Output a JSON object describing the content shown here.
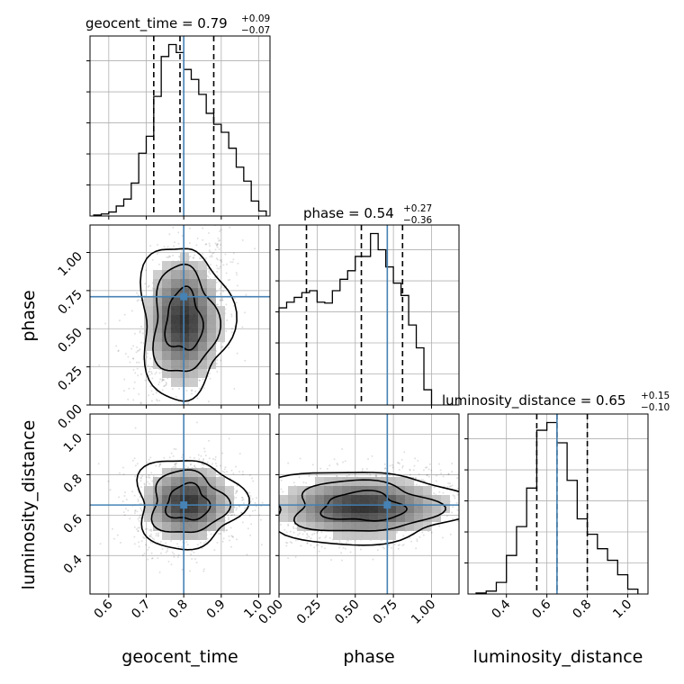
{
  "chart_data": {
    "type": "corner",
    "parameters": [
      "geocent_time",
      "phase",
      "luminosity_distance"
    ],
    "injection": {
      "geocent_time": 0.8,
      "phase": 0.71,
      "luminosity_distance": 0.65
    },
    "ranges": {
      "geocent_time": [
        0.55,
        1.03
      ],
      "phase": [
        0.0,
        1.18
      ],
      "luminosity_distance": [
        0.21,
        1.1
      ]
    },
    "ticks": {
      "geocent_time": [
        0.6,
        0.7,
        0.8,
        0.9,
        1.0
      ],
      "phase": [
        0.0,
        0.25,
        0.5,
        0.75,
        1.0
      ],
      "luminosity_distance": [
        0.4,
        0.6,
        0.8,
        1.0
      ]
    },
    "tick_labels": {
      "geocent_time": [
        "0.6",
        "0.7",
        "0.8",
        "0.9",
        "1.0"
      ],
      "phase_x": [
        "0.00",
        "0.25",
        "0.50",
        "0.75",
        "1.00"
      ],
      "phase_y": [
        "0.00",
        "0.25",
        "0.50",
        "0.75",
        "1.00"
      ],
      "luminosity_distance": [
        "0.4",
        "0.6",
        "0.8",
        "1.0"
      ]
    },
    "titles": {
      "geocent_time": {
        "main": "geocent_time = 0.79",
        "sup": "+0.09",
        "sub": "−0.07"
      },
      "phase": {
        "main": "phase = 0.54",
        "sup": "+0.27",
        "sub": "−0.36"
      },
      "luminosity_distance": {
        "main": "luminosity_distance = 0.65",
        "sup": "+0.15",
        "sub": "−0.10"
      }
    },
    "quantiles": {
      "geocent_time": [
        0.72,
        0.79,
        0.88
      ],
      "phase": [
        0.18,
        0.54,
        0.81
      ],
      "luminosity_distance": [
        0.55,
        0.65,
        0.8
      ]
    },
    "histograms": {
      "geocent_time": {
        "edges": [
          0.56,
          0.58,
          0.6,
          0.62,
          0.64,
          0.66,
          0.68,
          0.7,
          0.72,
          0.74,
          0.76,
          0.78,
          0.8,
          0.82,
          0.84,
          0.86,
          0.88,
          0.9,
          0.92,
          0.94,
          0.96,
          0.98,
          1.0,
          1.02
        ],
        "counts": [
          1,
          2,
          4,
          10,
          17,
          33,
          63,
          80,
          120,
          160,
          172,
          164,
          147,
          137,
          122,
          103,
          92,
          84,
          68,
          49,
          35,
          15,
          5
        ]
      },
      "phase": {
        "edges": [
          0.0,
          0.05,
          0.1,
          0.15,
          0.2,
          0.25,
          0.3,
          0.35,
          0.4,
          0.45,
          0.5,
          0.55,
          0.6,
          0.65,
          0.7,
          0.75,
          0.8,
          0.85,
          0.9,
          0.95,
          1.0
        ],
        "counts": [
          102,
          108,
          113,
          118,
          120,
          108,
          107,
          120,
          132,
          141,
          156,
          156,
          180,
          163,
          145,
          128,
          115,
          84,
          60,
          16
        ]
      },
      "luminosity_distance": {
        "edges": [
          0.25,
          0.3,
          0.35,
          0.4,
          0.45,
          0.5,
          0.55,
          0.6,
          0.65,
          0.7,
          0.75,
          0.8,
          0.85,
          0.9,
          0.95,
          1.0,
          1.05
        ],
        "counts": [
          1,
          3,
          12,
          40,
          70,
          110,
          170,
          178,
          157,
          118,
          78,
          62,
          47,
          35,
          20,
          5
        ]
      }
    },
    "scatter_spread": {
      "geocent_time_vs_phase": {
        "center": [
          0.8,
          0.55
        ],
        "sigma": [
          0.06,
          0.25
        ],
        "tilt": 0.35
      },
      "geocent_time_vs_luminosity_distance": {
        "center": [
          0.81,
          0.66
        ],
        "sigma": [
          0.07,
          0.11
        ],
        "tilt": 0.1
      },
      "phase_vs_luminosity_distance": {
        "center": [
          0.55,
          0.64
        ],
        "sigma": [
          0.33,
          0.09
        ],
        "tilt": 0.3
      }
    },
    "injection_color": "#4682b4",
    "hist_color": "#000000",
    "grid": true
  }
}
